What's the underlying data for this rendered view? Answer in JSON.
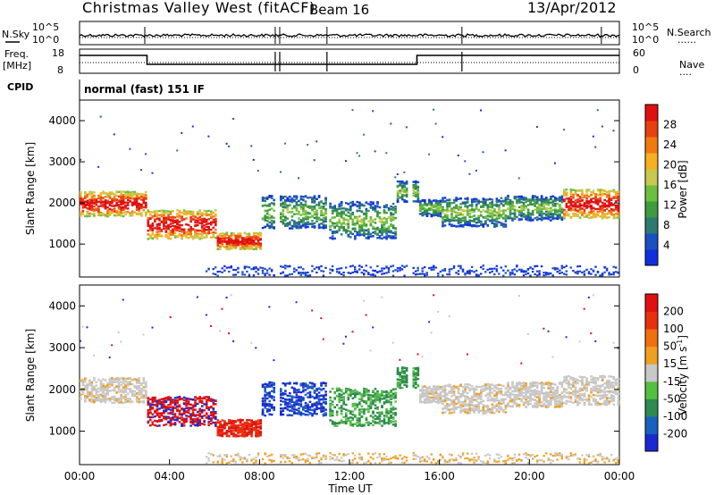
{
  "header": {
    "station": "Christmas Valley West (fitACF)",
    "beam": "Beam 16",
    "date": "13/Apr/2012"
  },
  "side_labels": {
    "nsky": "N.Sky",
    "nsearch": "N.Search",
    "freq": "Freq.",
    "freq_unit": "[MHz]",
    "nave": "Nave",
    "cpid": "CPID",
    "cpid_value": "normal (fast) 151 IF",
    "dotted": "......",
    "dotted_short": "...."
  },
  "small_axes": {
    "noise_left_ticks": [
      "10^5",
      "10^0"
    ],
    "noise_right_ticks": [
      "10^5",
      "10^0"
    ],
    "freq_left_ticks": [
      "18",
      "8"
    ],
    "nave_right_ticks": [
      "60",
      "0"
    ]
  },
  "chart_data": [
    {
      "type": "heatmap",
      "title": "",
      "xlabel": "",
      "ylabel": "Slant Range [km]",
      "ylim": [
        200,
        4500
      ],
      "yticks": [
        "1000",
        "2000",
        "3000",
        "4000"
      ],
      "colorbar": {
        "label": "Power [dB]",
        "ticks": [
          "4",
          "8",
          "12",
          "16",
          "20",
          "24",
          "28"
        ],
        "colors": [
          "#1030e0",
          "#1a50c0",
          "#2e7a70",
          "#3f9a40",
          "#6cc040",
          "#c8c850",
          "#f5b020",
          "#f07a10",
          "#e84010",
          "#e01010"
        ]
      }
    },
    {
      "type": "heatmap",
      "title": "",
      "xlabel": "Time UT",
      "ylabel": "Slant Range [km]",
      "ylim": [
        200,
        4500
      ],
      "yticks": [
        "1000",
        "2000",
        "3000",
        "4000"
      ],
      "xticks": [
        "00:00",
        "04:00",
        "08:00",
        "12:00",
        "16:00",
        "20:00",
        "00:00"
      ],
      "colorbar": {
        "label": "Velocity [m s",
        "label_sup": "-1",
        "label_end": "]",
        "ticks": [
          "200",
          "100",
          "50",
          "15",
          "-15",
          "-50",
          "-100",
          "-200"
        ],
        "colors": [
          "#1a2ad0",
          "#1a60c0",
          "#2d8a50",
          "#55c040",
          "#c8c8c8",
          "#f0a020",
          "#f07010",
          "#e83010",
          "#e01010"
        ]
      }
    }
  ]
}
